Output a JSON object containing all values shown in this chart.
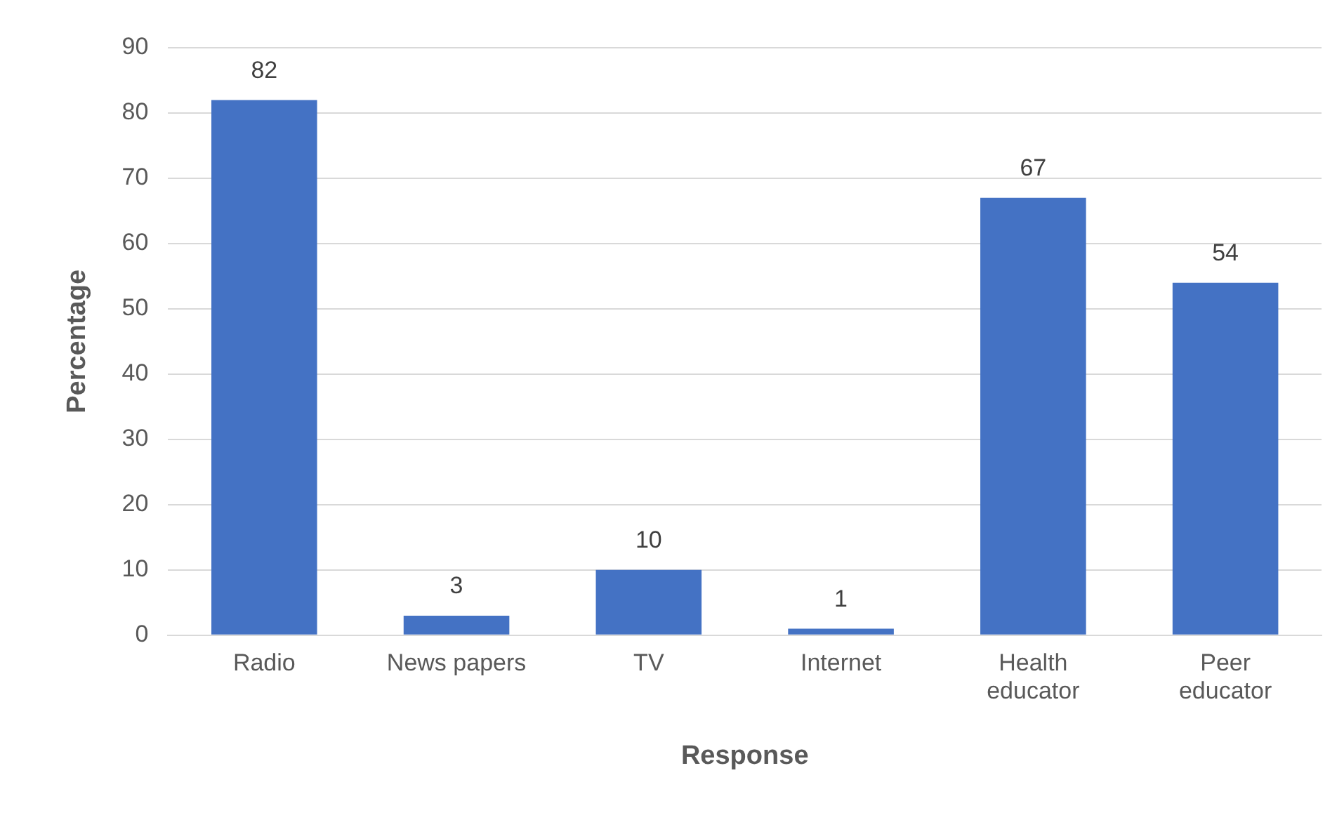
{
  "chart_data": {
    "type": "bar",
    "xlabel": "Response",
    "ylabel": "Percentage",
    "categories": [
      "Radio",
      "News papers",
      "TV",
      "Internet",
      "Health educator",
      "Peer educator"
    ],
    "values": [
      82,
      3,
      10,
      1,
      67,
      54
    ],
    "color": "#4472c4",
    "ylim": [
      0,
      90
    ],
    "yticks": [
      0,
      10,
      20,
      30,
      40,
      50,
      60,
      70,
      80,
      90
    ],
    "grid": "y",
    "data_labels": true,
    "legend": false
  }
}
